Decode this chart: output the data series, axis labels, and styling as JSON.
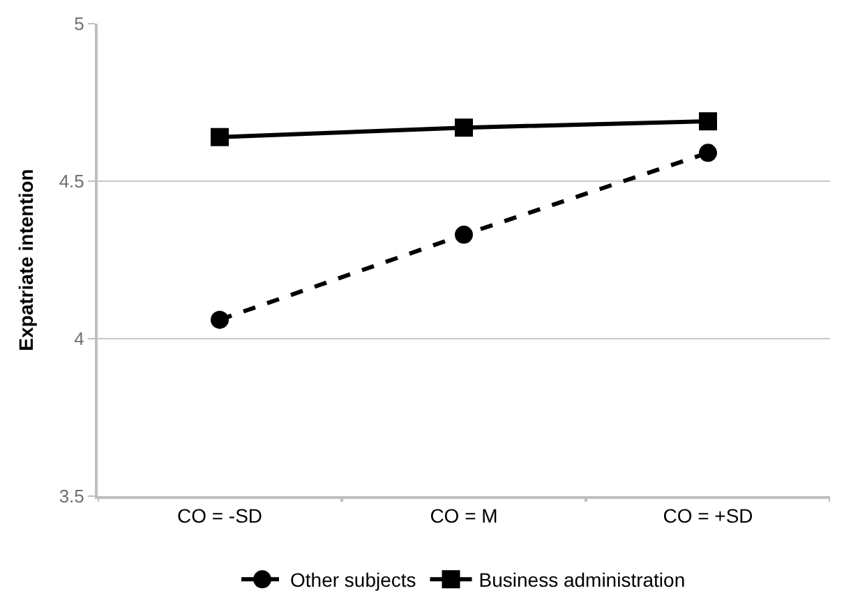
{
  "chart_data": {
    "type": "line",
    "ylabel": "Expatriate intention",
    "categories": [
      "CO = -SD",
      "CO = M",
      "CO = +SD"
    ],
    "series": [
      {
        "name": "Other subjects",
        "color": "#000000",
        "values": [
          4.06,
          4.33,
          4.59
        ],
        "marker": "circle",
        "line_style": "dashed"
      },
      {
        "name": "Business administration",
        "color": "#000000",
        "values": [
          4.64,
          4.67,
          4.69
        ],
        "marker": "square",
        "line_style": "solid"
      }
    ],
    "ylim": [
      3.5,
      5
    ],
    "yticks": [
      3.5,
      4,
      4.5,
      5
    ],
    "grid": "y",
    "legend": "bottom"
  }
}
